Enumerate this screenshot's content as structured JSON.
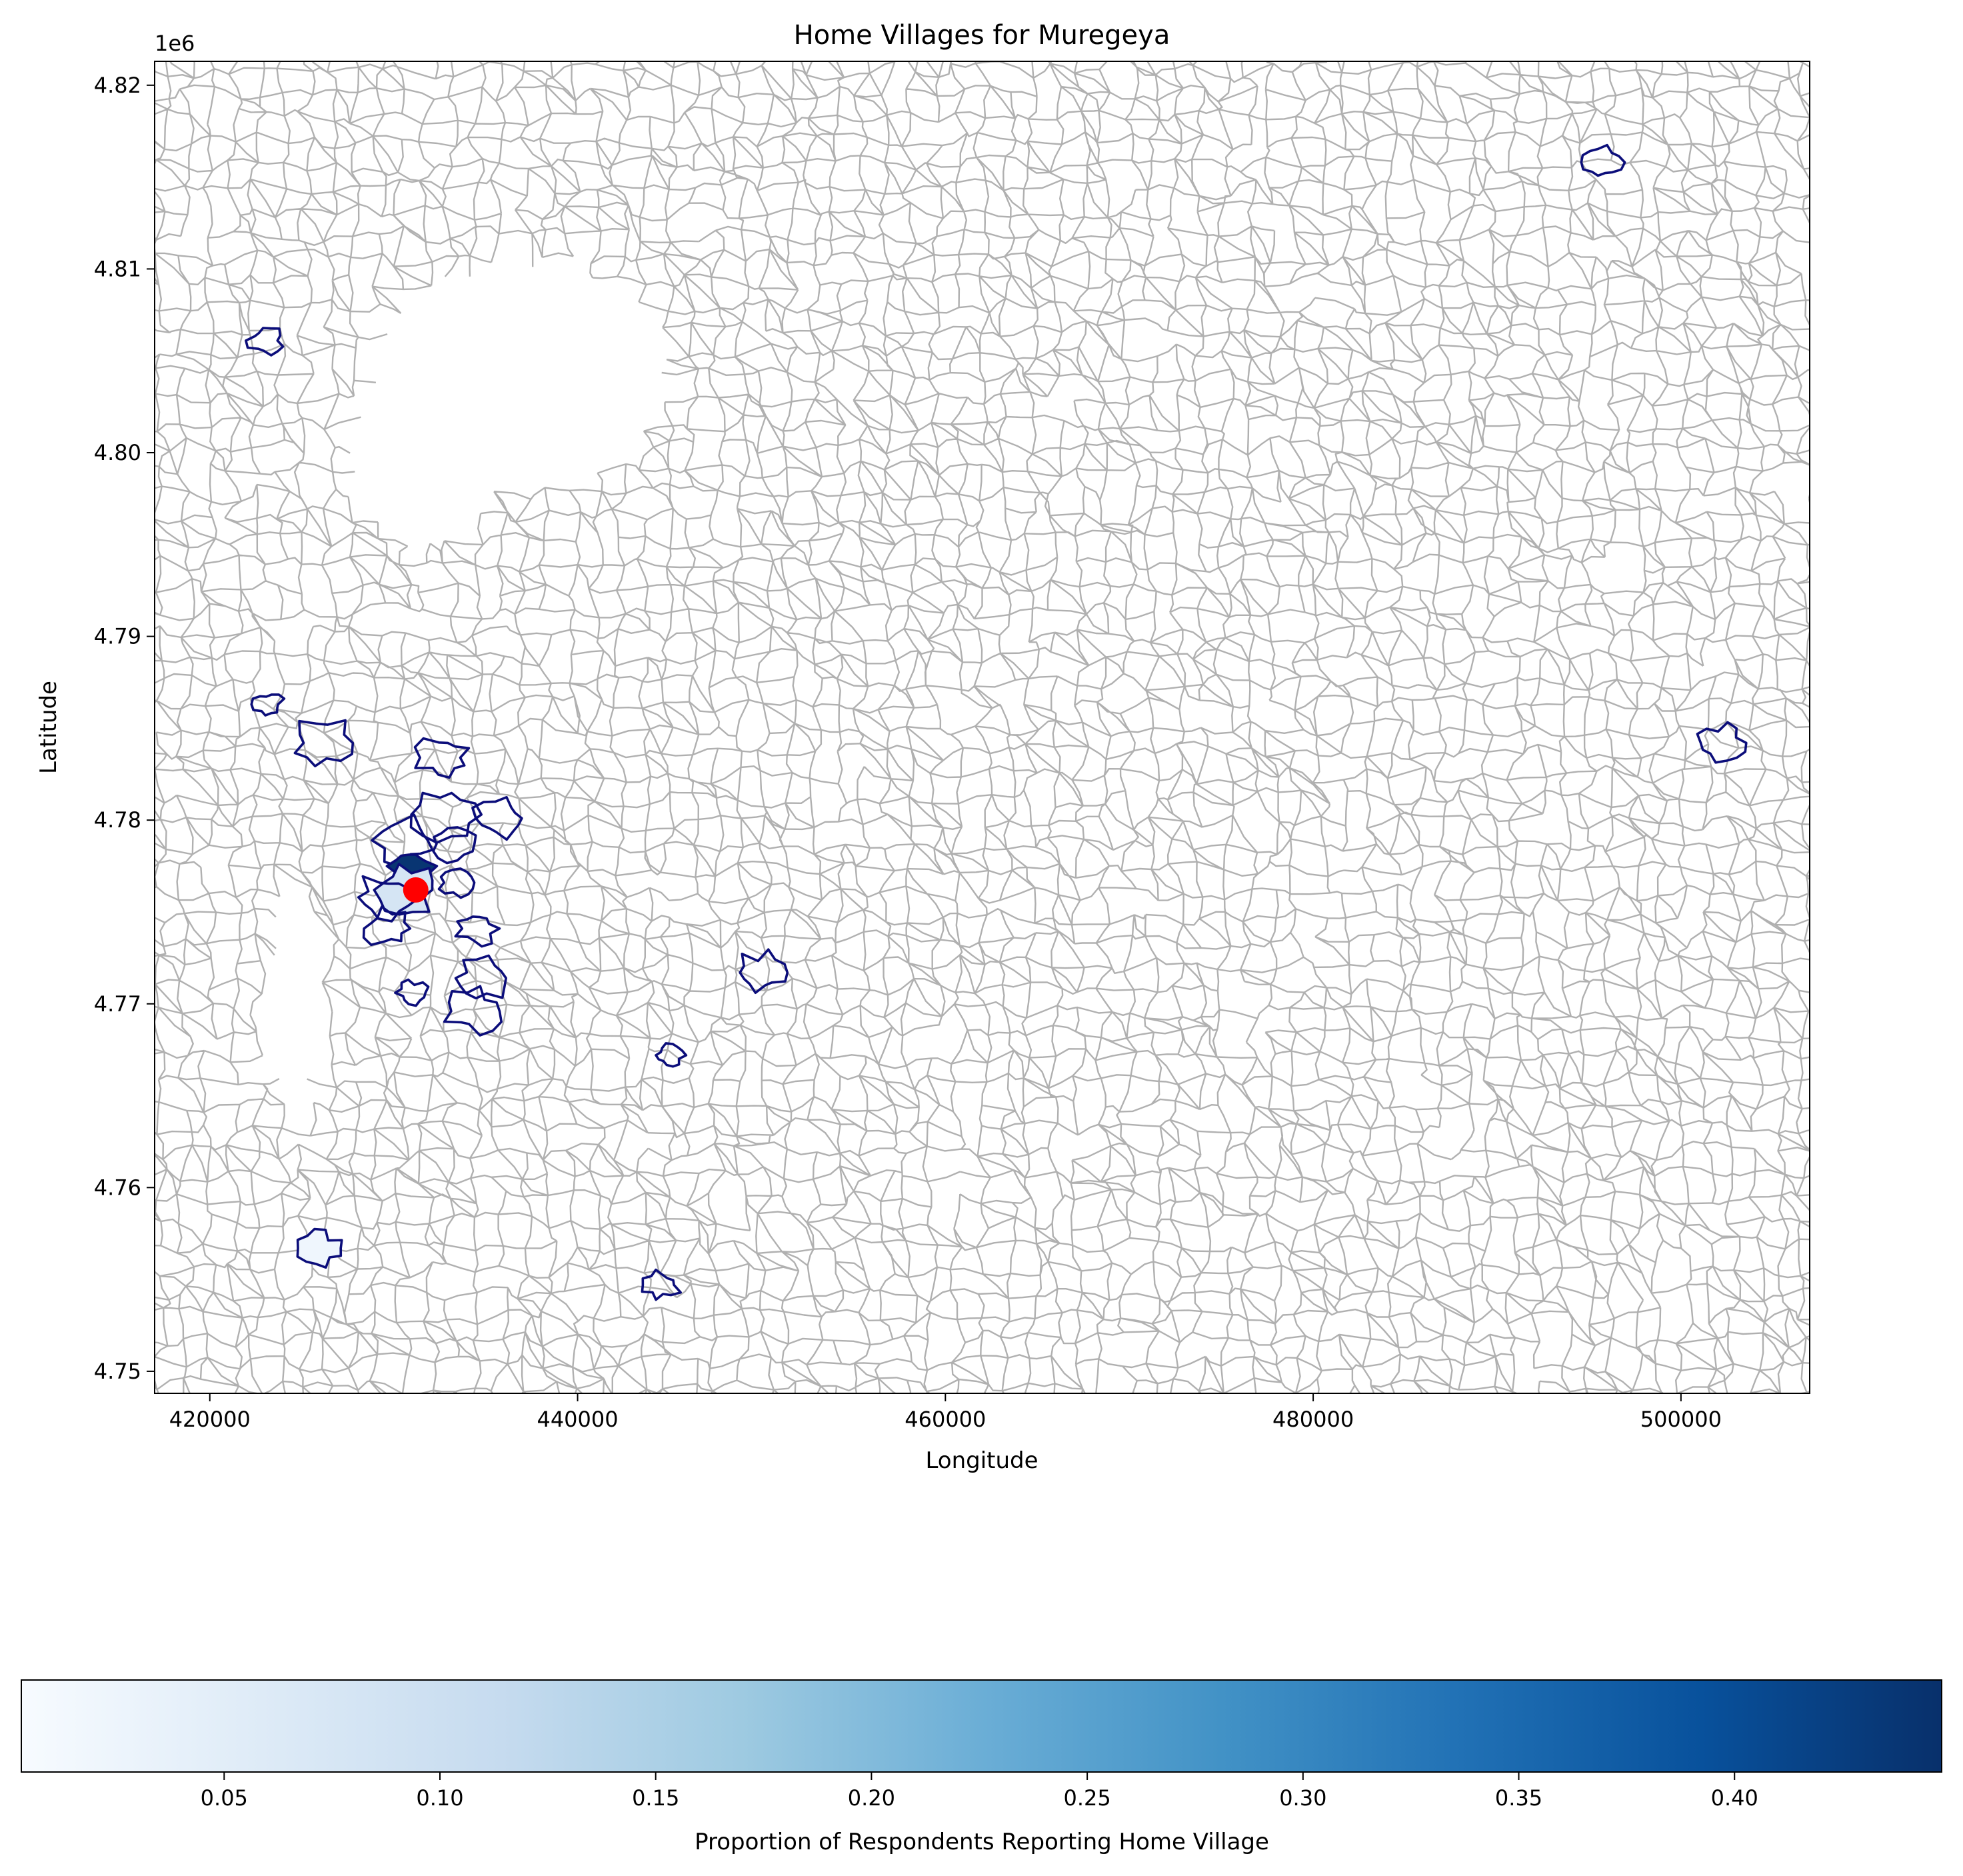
{
  "map": {
    "title": "Home Villages for Muregeya",
    "xlabel": "Longitude",
    "ylabel": "Latitude",
    "y_offset_label": "1e6",
    "x_range": [
      417000,
      507000
    ],
    "y_range": [
      4.7488,
      4.8213
    ],
    "x_ticks": [
      420000,
      440000,
      460000,
      480000,
      500000
    ],
    "x_tick_labels": [
      "420000",
      "440000",
      "460000",
      "480000",
      "500000"
    ],
    "y_ticks": [
      4.75,
      4.76,
      4.77,
      4.78,
      4.79,
      4.8,
      4.81,
      4.82
    ],
    "y_tick_labels": [
      "4.75",
      "4.76",
      "4.77",
      "4.78",
      "4.79",
      "4.80",
      "4.81",
      "4.82"
    ],
    "boundary_color": "#b0b0b0",
    "highlight_outline_color": "#0b0d7a",
    "marker_color": "#ff0000",
    "marker_location": [
      431200,
      4.7762
    ],
    "home_villages": [
      {
        "center": [
          423100,
          4.8061
        ],
        "proportion": 0.0
      },
      {
        "center": [
          495700,
          4.8158
        ],
        "proportion": 0.0
      },
      {
        "center": [
          423200,
          4.7863
        ],
        "proportion": 0.0
      },
      {
        "center": [
          426100,
          4.7842
        ],
        "proportion": 0.0
      },
      {
        "center": [
          432700,
          4.7834
        ],
        "proportion": 0.0
      },
      {
        "center": [
          435800,
          4.7801
        ],
        "proportion": 0.0
      },
      {
        "center": [
          432800,
          4.7803
        ],
        "proportion": 0.0
      },
      {
        "center": [
          430700,
          4.7789
        ],
        "proportion": 0.0
      },
      {
        "center": [
          433200,
          4.7787
        ],
        "proportion": 0.0
      },
      {
        "center": [
          431000,
          4.7775
        ],
        "proportion": 0.44
      },
      {
        "center": [
          430700,
          4.7762
        ],
        "proportion": 0.08
      },
      {
        "center": [
          433400,
          4.7766
        ],
        "proportion": 0.0
      },
      {
        "center": [
          429500,
          4.7758
        ],
        "proportion": 0.0
      },
      {
        "center": [
          429700,
          4.7741
        ],
        "proportion": 0.0
      },
      {
        "center": [
          434500,
          4.7741
        ],
        "proportion": 0.0
      },
      {
        "center": [
          434800,
          4.7714
        ],
        "proportion": 0.0
      },
      {
        "center": [
          431000,
          4.7706
        ],
        "proportion": 0.0
      },
      {
        "center": [
          434300,
          4.7696
        ],
        "proportion": 0.0
      },
      {
        "center": [
          450000,
          4.7717
        ],
        "proportion": 0.0
      },
      {
        "center": [
          445000,
          4.7672
        ],
        "proportion": 0.0
      },
      {
        "center": [
          426000,
          4.7567
        ],
        "proportion": 0.02
      },
      {
        "center": [
          444500,
          4.7547
        ],
        "proportion": 0.0
      },
      {
        "center": [
          502200,
          4.7842
        ],
        "proportion": 0.0
      }
    ]
  },
  "colorbar": {
    "label": "Proportion of Respondents Reporting Home Village",
    "min": 0.003,
    "max": 0.448,
    "ticks": [
      0.05,
      0.1,
      0.15,
      0.2,
      0.25,
      0.3,
      0.35,
      0.4
    ],
    "tick_labels": [
      "0.05",
      "0.10",
      "0.15",
      "0.20",
      "0.25",
      "0.30",
      "0.35",
      "0.40"
    ],
    "colormap": "Blues",
    "color_stops": [
      "#f7fbff",
      "#deebf7",
      "#c6dbef",
      "#9ecae1",
      "#6baed6",
      "#4292c6",
      "#2171b5",
      "#08519c",
      "#08306b"
    ]
  }
}
